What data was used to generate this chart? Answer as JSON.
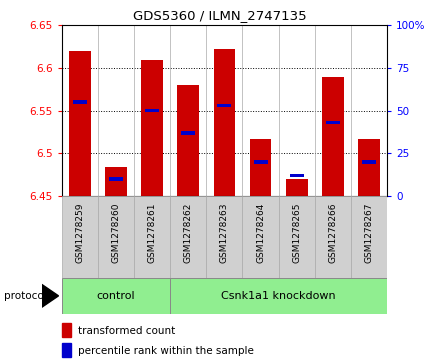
{
  "title": "GDS5360 / ILMN_2747135",
  "samples": [
    "GSM1278259",
    "GSM1278260",
    "GSM1278261",
    "GSM1278262",
    "GSM1278263",
    "GSM1278264",
    "GSM1278265",
    "GSM1278266",
    "GSM1278267"
  ],
  "transformed_counts": [
    6.62,
    6.484,
    6.61,
    6.58,
    6.622,
    6.517,
    6.47,
    6.59,
    6.517
  ],
  "percentile_ranks": [
    55,
    10,
    50,
    37,
    53,
    20,
    12,
    43,
    20
  ],
  "ylim_left": [
    6.45,
    6.65
  ],
  "ylim_right": [
    0,
    100
  ],
  "yticks_left": [
    6.45,
    6.5,
    6.55,
    6.6,
    6.65
  ],
  "yticks_right": [
    0,
    25,
    50,
    75,
    100
  ],
  "bar_color": "#cc0000",
  "blue_color": "#0000cc",
  "group_boundary": 3,
  "group_labels": [
    "control",
    "Csnk1a1 knockdown"
  ],
  "green_color": "#90ee90",
  "gray_color": "#d0d0d0",
  "protocol_label": "protocol",
  "legend_items": [
    {
      "label": "transformed count",
      "color": "#cc0000"
    },
    {
      "label": "percentile rank within the sample",
      "color": "#0000cc"
    }
  ]
}
